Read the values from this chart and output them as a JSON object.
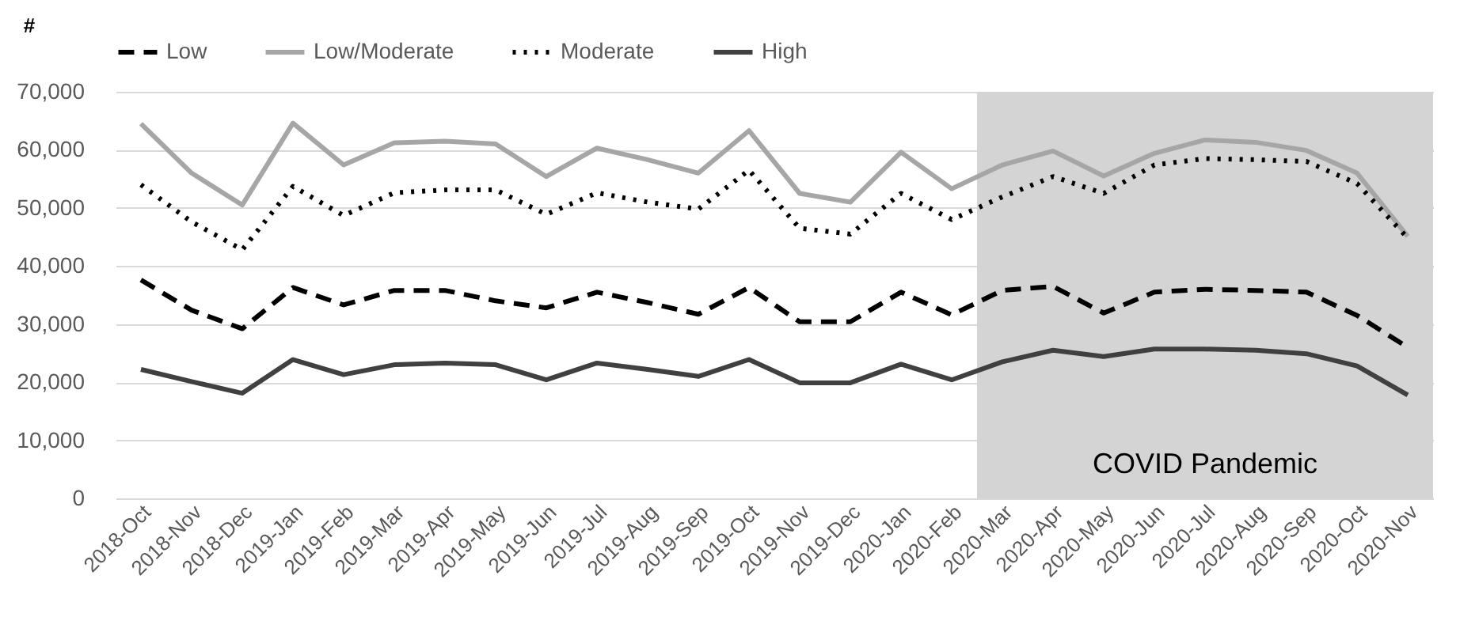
{
  "chart_data": {
    "type": "line",
    "ylabel": "#",
    "categories": [
      "2018-Oct",
      "2018-Nov",
      "2018-Dec",
      "2019-Jan",
      "2019-Feb",
      "2019-Mar",
      "2019-Apr",
      "2019-May",
      "2019-Jun",
      "2019-Jul",
      "2019-Aug",
      "2019-Sep",
      "2019-Oct",
      "2019-Nov",
      "2019-Dec",
      "2020-Jan",
      "2020-Feb",
      "2020-Mar",
      "2020-Apr",
      "2020-May",
      "2020-Jun",
      "2020-Jul",
      "2020-Aug",
      "2020-Sep",
      "2020-Oct",
      "2020-Nov"
    ],
    "series": [
      {
        "name": "Low",
        "color": "#000000",
        "line_style": "dashed",
        "values": [
          37600,
          32400,
          29200,
          36300,
          33300,
          35800,
          35800,
          34000,
          32800,
          35500,
          33700,
          31700,
          36300,
          30400,
          30400,
          35500,
          31600,
          35800,
          36500,
          31900,
          35500,
          36000,
          35800,
          35500,
          31500,
          26000
        ]
      },
      {
        "name": "Low/Moderate",
        "color": "#a6a6a6",
        "line_style": "solid",
        "values": [
          64500,
          56000,
          50500,
          64600,
          57400,
          61200,
          61500,
          61000,
          55400,
          60300,
          58300,
          56000,
          63300,
          52500,
          51000,
          59600,
          53300,
          57400,
          59800,
          55500,
          59400,
          61700,
          61300,
          59900,
          56000,
          45100
        ]
      },
      {
        "name": "Moderate",
        "color": "#000000",
        "line_style": "dotted",
        "values": [
          54000,
          47600,
          42800,
          53700,
          48700,
          52600,
          53100,
          53100,
          48900,
          52600,
          51000,
          49800,
          56500,
          46500,
          45500,
          52500,
          48000,
          51900,
          55400,
          52500,
          57400,
          58500,
          58300,
          58000,
          54200,
          44800
        ]
      },
      {
        "name": "High",
        "color": "#404040",
        "line_style": "solid",
        "values": [
          22200,
          20100,
          18100,
          23900,
          21300,
          23000,
          23300,
          23000,
          20400,
          23300,
          22200,
          21000,
          23900,
          19900,
          19900,
          23100,
          20400,
          23500,
          25500,
          24400,
          25700,
          25700,
          25500,
          24900,
          22800,
          17800
        ]
      }
    ],
    "ylim": [
      0,
      70000
    ],
    "yticks": [
      0,
      {
        "value": 10000,
        "label": "10,000"
      },
      {
        "value": 20000,
        "label": "20,000"
      },
      {
        "value": 30000,
        "label": "30,000"
      },
      {
        "value": 40000,
        "label": "40,000"
      },
      {
        "value": 50000,
        "label": "50,000"
      },
      {
        "value": 60000,
        "label": "60,000"
      },
      {
        "value": 70000,
        "label": "70,000"
      }
    ],
    "grid": "y",
    "legend": "top",
    "bands": [
      {
        "axis": "x",
        "from": "2020-Mar",
        "to": "2020-Nov",
        "label": "COVID Pandemic",
        "color": "#d4d4d4"
      }
    ]
  }
}
